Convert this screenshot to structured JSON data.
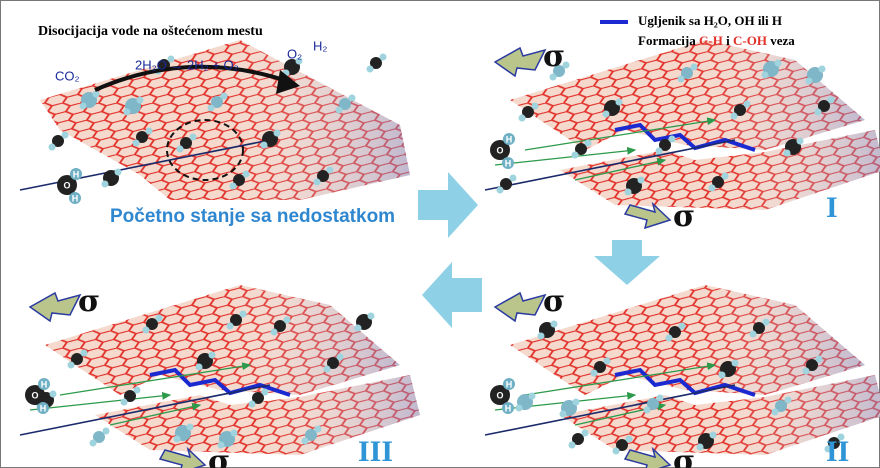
{
  "header": {
    "title": "Disocijacija vode na oštećenom mestu"
  },
  "reaction": {
    "co2": "CO₂",
    "equation": "2H₂O → 2H₂ + O₂",
    "o2": "O₂",
    "h2": "H₂"
  },
  "legend": {
    "line1": "Ugljenik sa H₂O, OH ili H",
    "line2": [
      "Formacija",
      "C-H",
      "i",
      "C-OH",
      "veza"
    ]
  },
  "initial_state": "Početno stanje sa nedostatkom",
  "stress": "σ",
  "atoms": {
    "o": "O",
    "h": "H"
  },
  "stages": [
    "I",
    "II",
    "III"
  ]
}
